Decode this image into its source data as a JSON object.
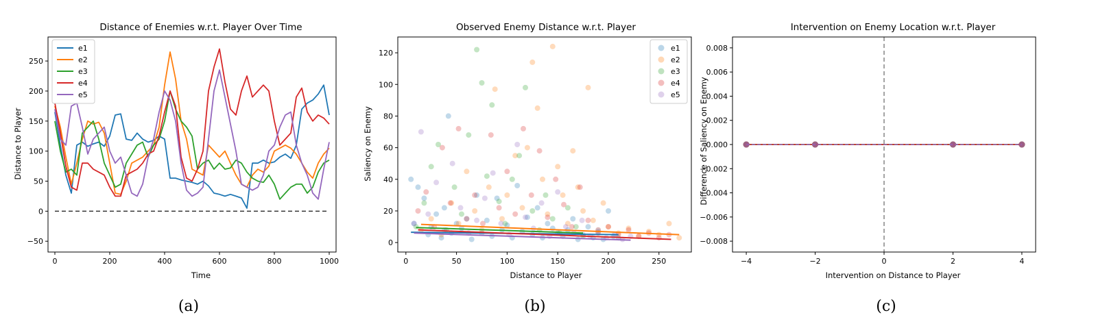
{
  "colors": {
    "e1": "#1f77b4",
    "e2": "#ff7f0e",
    "e3": "#2ca02c",
    "e4": "#d62728",
    "e5": "#9467bd",
    "zero_line": "#333333"
  },
  "chart_data": [
    {
      "id": "a",
      "type": "line",
      "title": "Distance of Enemies w.r.t. Player Over Time",
      "xlabel": "Time",
      "ylabel": "Distance to Player",
      "xlim": [
        -25,
        1025
      ],
      "ylim": [
        -68,
        290
      ],
      "xticks": [
        0,
        200,
        400,
        600,
        800,
        1000
      ],
      "yticks": [
        -50,
        0,
        50,
        100,
        150,
        200,
        250
      ],
      "legend": "top-left",
      "grid": false,
      "reference_line": {
        "y": 0,
        "style": "dashed"
      },
      "caption": "(a)",
      "series": [
        {
          "name": "e1",
          "x": [
            0,
            20,
            40,
            60,
            80,
            100,
            120,
            140,
            160,
            180,
            200,
            220,
            240,
            260,
            280,
            300,
            320,
            340,
            360,
            380,
            400,
            420,
            440,
            460,
            480,
            500,
            520,
            540,
            560,
            580,
            600,
            620,
            640,
            660,
            680,
            700,
            720,
            740,
            760,
            780,
            800,
            820,
            840,
            860,
            880,
            900,
            920,
            940,
            960,
            980,
            1000
          ],
          "y": [
            165,
            110,
            60,
            30,
            110,
            115,
            108,
            112,
            115,
            108,
            125,
            160,
            162,
            120,
            118,
            130,
            120,
            115,
            118,
            125,
            120,
            55,
            55,
            52,
            50,
            48,
            45,
            50,
            42,
            30,
            28,
            25,
            28,
            25,
            22,
            5,
            80,
            80,
            85,
            80,
            82,
            90,
            95,
            88,
            110,
            170,
            180,
            185,
            195,
            210,
            160
          ]
        },
        {
          "name": "e2",
          "x": [
            0,
            20,
            40,
            60,
            80,
            100,
            120,
            140,
            160,
            180,
            200,
            220,
            240,
            260,
            280,
            300,
            320,
            340,
            360,
            380,
            400,
            420,
            440,
            460,
            480,
            500,
            520,
            540,
            560,
            580,
            600,
            620,
            640,
            660,
            680,
            700,
            720,
            740,
            760,
            780,
            800,
            820,
            840,
            860,
            880,
            900,
            920,
            940,
            960,
            980,
            1000
          ],
          "y": [
            175,
            140,
            90,
            45,
            80,
            120,
            150,
            145,
            148,
            130,
            80,
            30,
            28,
            50,
            80,
            85,
            90,
            100,
            110,
            140,
            210,
            265,
            220,
            150,
            120,
            70,
            65,
            60,
            110,
            100,
            90,
            100,
            80,
            60,
            45,
            40,
            60,
            70,
            65,
            75,
            100,
            105,
            110,
            105,
            95,
            80,
            65,
            55,
            80,
            95,
            105
          ]
        },
        {
          "name": "e3",
          "x": [
            0,
            20,
            40,
            60,
            80,
            100,
            120,
            140,
            160,
            180,
            200,
            220,
            240,
            260,
            280,
            300,
            320,
            340,
            360,
            380,
            400,
            420,
            440,
            460,
            480,
            500,
            520,
            540,
            560,
            580,
            600,
            620,
            640,
            660,
            680,
            700,
            720,
            740,
            760,
            780,
            800,
            820,
            840,
            860,
            880,
            900,
            920,
            940,
            960,
            980,
            1000
          ],
          "y": [
            150,
            100,
            65,
            70,
            60,
            130,
            140,
            150,
            120,
            80,
            60,
            40,
            45,
            80,
            95,
            110,
            115,
            90,
            110,
            120,
            150,
            200,
            170,
            150,
            140,
            125,
            70,
            80,
            85,
            70,
            80,
            70,
            72,
            85,
            80,
            65,
            55,
            50,
            48,
            60,
            45,
            20,
            30,
            40,
            45,
            45,
            30,
            40,
            65,
            80,
            85
          ]
        },
        {
          "name": "e4",
          "x": [
            0,
            20,
            40,
            60,
            80,
            100,
            120,
            140,
            160,
            180,
            200,
            220,
            240,
            260,
            280,
            300,
            320,
            340,
            360,
            380,
            400,
            420,
            440,
            460,
            480,
            500,
            520,
            540,
            560,
            580,
            600,
            620,
            640,
            660,
            680,
            700,
            720,
            740,
            760,
            780,
            800,
            820,
            840,
            860,
            880,
            900,
            920,
            940,
            960,
            980,
            1000
          ],
          "y": [
            180,
            130,
            75,
            40,
            35,
            80,
            80,
            70,
            65,
            60,
            40,
            25,
            25,
            60,
            65,
            70,
            80,
            95,
            100,
            125,
            165,
            200,
            175,
            90,
            55,
            50,
            70,
            100,
            200,
            240,
            270,
            215,
            170,
            160,
            200,
            225,
            190,
            200,
            210,
            200,
            150,
            110,
            120,
            130,
            190,
            205,
            165,
            150,
            160,
            155,
            145
          ]
        },
        {
          "name": "e5",
          "x": [
            0,
            20,
            40,
            60,
            80,
            100,
            120,
            140,
            160,
            180,
            200,
            220,
            240,
            260,
            280,
            300,
            320,
            340,
            360,
            380,
            400,
            420,
            440,
            460,
            480,
            500,
            520,
            540,
            560,
            580,
            600,
            620,
            640,
            660,
            680,
            700,
            720,
            740,
            760,
            780,
            800,
            820,
            840,
            860,
            880,
            900,
            920,
            940,
            960,
            980,
            1000
          ],
          "y": [
            170,
            120,
            110,
            175,
            180,
            140,
            95,
            120,
            130,
            140,
            100,
            80,
            90,
            60,
            30,
            25,
            45,
            90,
            120,
            165,
            200,
            185,
            150,
            80,
            35,
            25,
            30,
            40,
            120,
            200,
            235,
            190,
            145,
            100,
            45,
            40,
            35,
            40,
            60,
            100,
            110,
            140,
            160,
            165,
            110,
            80,
            60,
            30,
            20,
            70,
            115
          ]
        }
      ]
    },
    {
      "id": "b",
      "type": "scatter",
      "title": "Observed Enemy Distance w.r.t. Player",
      "xlabel": "Distance to Player",
      "ylabel": "Saliency on Enemy",
      "xlim": [
        -8,
        282
      ],
      "ylim": [
        -6,
        130
      ],
      "xticks": [
        0,
        50,
        100,
        150,
        200,
        250
      ],
      "yticks": [
        0,
        20,
        40,
        60,
        80,
        100,
        120
      ],
      "legend": "top-right",
      "grid": false,
      "caption": "(b)",
      "series": [
        {
          "name": "e1",
          "x": [
            5,
            8,
            12,
            18,
            22,
            25,
            30,
            35,
            38,
            42,
            45,
            50,
            55,
            60,
            65,
            70,
            75,
            80,
            85,
            90,
            95,
            100,
            105,
            110,
            115,
            120,
            125,
            130,
            135,
            140,
            145,
            150,
            155,
            160,
            165,
            170,
            175,
            180,
            185,
            190,
            195,
            200,
            205,
            210
          ],
          "y": [
            40,
            12,
            35,
            28,
            5,
            10,
            18,
            3,
            22,
            80,
            6,
            12,
            9,
            15,
            2,
            30,
            6,
            14,
            4,
            28,
            8,
            11,
            3,
            36,
            7,
            16,
            5,
            22,
            3,
            12,
            9,
            6,
            4,
            8,
            15,
            2,
            5,
            10,
            3,
            7,
            2,
            20,
            4,
            3
          ]
        },
        {
          "name": "e2",
          "x": [
            15,
            25,
            35,
            45,
            52,
            60,
            68,
            75,
            82,
            88,
            95,
            100,
            108,
            115,
            120,
            125,
            130,
            135,
            140,
            145,
            150,
            155,
            160,
            165,
            170,
            175,
            180,
            185,
            190,
            195,
            200,
            210,
            220,
            230,
            240,
            250,
            260,
            270
          ],
          "y": [
            8,
            15,
            5,
            25,
            12,
            45,
            20,
            8,
            35,
            97,
            15,
            30,
            55,
            22,
            60,
            114,
            85,
            40,
            18,
            124,
            48,
            30,
            12,
            58,
            35,
            20,
            98,
            14,
            8,
            25,
            10,
            6,
            9,
            4,
            7,
            5,
            12,
            3
          ]
        },
        {
          "name": "e3",
          "x": [
            10,
            18,
            25,
            32,
            40,
            48,
            55,
            62,
            70,
            75,
            80,
            85,
            92,
            98,
            105,
            112,
            118,
            125,
            132,
            138,
            145,
            152,
            160,
            168,
            175
          ],
          "y": [
            10,
            25,
            48,
            62,
            8,
            35,
            18,
            68,
            122,
            101,
            42,
            87,
            26,
            12,
            40,
            55,
            98,
            20,
            8,
            30,
            15,
            6,
            22,
            10,
            4
          ]
        },
        {
          "name": "e4",
          "x": [
            12,
            20,
            28,
            36,
            44,
            52,
            60,
            68,
            76,
            84,
            92,
            100,
            108,
            116,
            124,
            132,
            140,
            148,
            156,
            164,
            172,
            180,
            190,
            200,
            210,
            220,
            230,
            240,
            250,
            260
          ],
          "y": [
            20,
            32,
            10,
            60,
            25,
            72,
            15,
            30,
            12,
            68,
            22,
            45,
            18,
            72,
            30,
            58,
            16,
            40,
            24,
            10,
            35,
            14,
            6,
            10,
            5,
            8,
            4,
            6,
            3,
            5
          ]
        },
        {
          "name": "e5",
          "x": [
            8,
            15,
            22,
            30,
            38,
            46,
            54,
            62,
            70,
            78,
            86,
            94,
            102,
            110,
            118,
            126,
            134,
            142,
            150,
            158,
            166,
            174,
            182,
            190,
            198,
            206,
            214,
            222
          ],
          "y": [
            12,
            70,
            18,
            38,
            8,
            50,
            22,
            6,
            14,
            28,
            44,
            12,
            5,
            62,
            16,
            9,
            25,
            4,
            32,
            10,
            6,
            14,
            4,
            8,
            3,
            5,
            2,
            4
          ]
        }
      ],
      "trend_lines": [
        {
          "name": "e1",
          "x": [
            5,
            210
          ],
          "y": [
            6.5,
            5.0
          ]
        },
        {
          "name": "e2",
          "x": [
            15,
            270
          ],
          "y": [
            11.5,
            5.0
          ]
        },
        {
          "name": "e3",
          "x": [
            10,
            175
          ],
          "y": [
            9.5,
            6.0
          ]
        },
        {
          "name": "e4",
          "x": [
            12,
            262
          ],
          "y": [
            8.0,
            2.0
          ]
        },
        {
          "name": "e5",
          "x": [
            8,
            222
          ],
          "y": [
            6.0,
            1.5
          ]
        }
      ]
    },
    {
      "id": "c",
      "type": "line",
      "title": "Intervention on Enemy Location w.r.t. Player",
      "xlabel": "Intervention on Distance to Player",
      "ylabel": "Difference of Saliency on Enemy",
      "xlim": [
        -4.4,
        4.4
      ],
      "ylim": [
        -0.0089,
        0.0089
      ],
      "xticks": [
        -4,
        -2,
        0,
        2,
        4
      ],
      "yticks": [
        -0.008,
        -0.006,
        -0.004,
        -0.002,
        0.0,
        0.002,
        0.004,
        0.006,
        0.008
      ],
      "ytick_labels": [
        "−0.008",
        "−0.006",
        "−0.004",
        "−0.002",
        "0.000",
        "0.002",
        "0.004",
        "0.006",
        "0.008"
      ],
      "xtick_labels": [
        "−4",
        "−2",
        "0",
        "2",
        "4"
      ],
      "grid": false,
      "reference_line": {
        "x": 0,
        "style": "dashed"
      },
      "caption": "(c)",
      "series": [
        {
          "name": "e1",
          "x": [
            -4,
            -2,
            2,
            4
          ],
          "y": [
            0,
            0,
            0,
            0
          ]
        },
        {
          "name": "e2",
          "x": [
            -4,
            -2,
            2,
            4
          ],
          "y": [
            0,
            0,
            0,
            0
          ]
        },
        {
          "name": "e3",
          "x": [
            -4,
            -2,
            2,
            4
          ],
          "y": [
            0,
            0,
            0,
            0
          ]
        },
        {
          "name": "e4",
          "x": [
            -4,
            -2,
            2,
            4
          ],
          "y": [
            0,
            0,
            0,
            0
          ]
        },
        {
          "name": "e5",
          "x": [
            -4,
            -2,
            2,
            4
          ],
          "y": [
            0,
            0,
            0,
            0
          ]
        }
      ]
    }
  ]
}
